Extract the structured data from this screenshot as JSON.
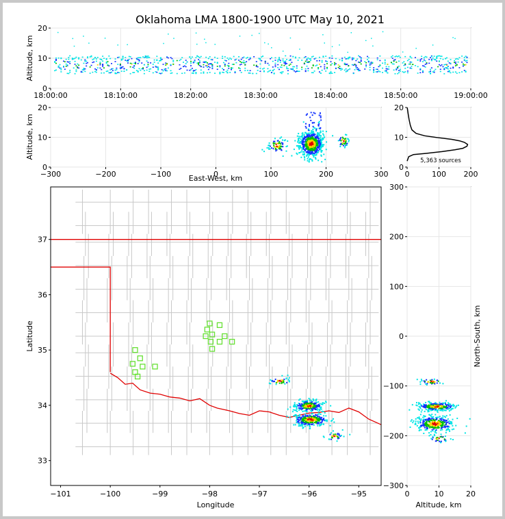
{
  "title": "Oklahoma LMA 1800-1900 UTC May 10, 2021",
  "colors": {
    "border": "#e00000",
    "county": "#c8c8c8",
    "station": "#66e033",
    "grid": "#e6e6e6",
    "sources_low": "#00e5e5",
    "sources_mid": "#00c000",
    "sources_high": "#ffd000",
    "sources_peak": "#e00000",
    "sources_blue": "#1030ff"
  },
  "chart_data": [
    {
      "id": "time-altitude",
      "type": "scatter",
      "ylabel": "Altitude, km",
      "xlabel": "",
      "ylim": [
        0,
        20
      ],
      "yticks": [
        "0",
        "10",
        "20"
      ],
      "xticks": [
        "18:00:00",
        "18:10:00",
        "18:20:00",
        "18:30:00",
        "18:40:00",
        "18:50:00",
        "19:00:00"
      ],
      "xlim_minutes": [
        0,
        60
      ],
      "bands": [
        {
          "x_from": 0.5,
          "x_to": 59.5,
          "alt_from": 5,
          "alt_to": 11
        }
      ]
    },
    {
      "id": "east-west-altitude",
      "type": "scatter",
      "xlabel": "East-West, km",
      "ylabel": "Altitude, km",
      "xlim": [
        -300,
        300
      ],
      "ylim": [
        0,
        20
      ],
      "xticks": [
        "−300",
        "−200",
        "−100",
        "0",
        "100",
        "200",
        "300"
      ],
      "yticks": [
        "0",
        "10",
        "20"
      ],
      "clusters": [
        {
          "x": 110,
          "alt": 7.5,
          "sx": 8,
          "sy": 1.3,
          "n": 70
        },
        {
          "x": 172,
          "alt": 8,
          "sx": 11,
          "sy": 2.2,
          "n": 650
        },
        {
          "x": 230,
          "alt": 9,
          "sx": 5,
          "sy": 1.2,
          "n": 40
        }
      ]
    },
    {
      "id": "altitude-histogram",
      "type": "line",
      "xlim": [
        0,
        200
      ],
      "ylim": [
        0,
        20
      ],
      "xticks": [
        "0",
        "100",
        "200"
      ],
      "yticks": [
        "0",
        "10",
        "20"
      ],
      "annotation": "5,363 sources",
      "profile": [
        [
          0,
          2
        ],
        [
          5,
          3.5
        ],
        [
          20,
          4.2
        ],
        [
          60,
          4.6
        ],
        [
          110,
          5.2
        ],
        [
          150,
          5.8
        ],
        [
          175,
          6.3
        ],
        [
          188,
          7
        ],
        [
          190,
          7.6
        ],
        [
          180,
          8.3
        ],
        [
          165,
          8.8
        ],
        [
          140,
          9.3
        ],
        [
          95,
          9.9
        ],
        [
          55,
          10.5
        ],
        [
          28,
          11.3
        ],
        [
          15,
          12.5
        ],
        [
          10,
          14
        ],
        [
          6,
          16
        ],
        [
          3,
          18
        ],
        [
          1,
          19.5
        ],
        [
          0,
          20
        ]
      ]
    },
    {
      "id": "plan-view",
      "type": "scatter",
      "xlabel": "Longitude",
      "ylabel": "Latitude",
      "xlim": [
        -101.2,
        -94.55
      ],
      "ylim": [
        32.55,
        37.95
      ],
      "xticks": [
        "−101",
        "−100",
        "−99",
        "−98",
        "−97",
        "−96",
        "−95"
      ],
      "yticks": [
        "33",
        "34",
        "35",
        "36",
        "37"
      ],
      "stations": [
        [
          -99.5,
          35.0
        ],
        [
          -99.4,
          34.85
        ],
        [
          -99.55,
          34.75
        ],
        [
          -99.35,
          34.7
        ],
        [
          -99.5,
          34.6
        ],
        [
          -99.45,
          34.52
        ],
        [
          -99.1,
          34.7
        ],
        [
          -98.0,
          35.48
        ],
        [
          -97.8,
          35.45
        ],
        [
          -98.05,
          35.37
        ],
        [
          -97.95,
          35.28
        ],
        [
          -98.08,
          35.25
        ],
        [
          -97.7,
          35.25
        ],
        [
          -97.98,
          35.15
        ],
        [
          -97.8,
          35.15
        ],
        [
          -97.55,
          35.15
        ],
        [
          -97.95,
          35.02
        ]
      ],
      "clusters": [
        {
          "lon": -96.02,
          "lat": 34.0,
          "sx": 0.14,
          "sy": 0.05,
          "n": 260
        },
        {
          "lon": -95.98,
          "lat": 33.75,
          "sx": 0.18,
          "sy": 0.06,
          "n": 320
        },
        {
          "lon": -96.6,
          "lat": 34.45,
          "sx": 0.1,
          "sy": 0.04,
          "n": 40
        },
        {
          "lon": -95.5,
          "lat": 33.45,
          "sx": 0.08,
          "sy": 0.04,
          "n": 35
        }
      ]
    },
    {
      "id": "altitude-north-south",
      "type": "scatter",
      "xlabel": "Altitude, km",
      "ylabel": "North-South, km",
      "xlim": [
        0,
        20
      ],
      "ylim": [
        -300,
        300
      ],
      "xticks": [
        "0",
        "10",
        "20"
      ],
      "yticks": [
        "−300",
        "−200",
        "−100",
        "0",
        "100",
        "200",
        "300"
      ],
      "clusters": [
        {
          "alt": 9,
          "y": -140,
          "sx": 3,
          "sy": 4,
          "n": 260
        },
        {
          "alt": 8.5,
          "y": -175,
          "sx": 3,
          "sy": 8,
          "n": 340
        },
        {
          "alt": 7.5,
          "y": -90,
          "sx": 2,
          "sy": 3,
          "n": 40
        },
        {
          "alt": 10,
          "y": -205,
          "sx": 1.5,
          "sy": 4,
          "n": 35
        }
      ]
    }
  ]
}
